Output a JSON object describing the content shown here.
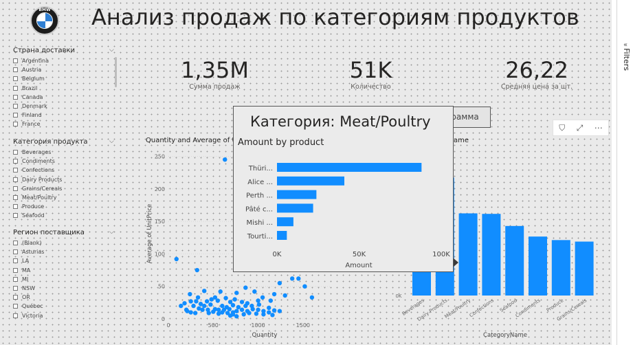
{
  "title": "Анализ продаж по категориям продуктов",
  "logo": {
    "text": "BMW"
  },
  "slicers": [
    {
      "title": "Страна доставки",
      "items": [
        "Argentina",
        "Austria",
        "Belgium",
        "Brazil",
        "Canada",
        "Denmark",
        "Finland",
        "France"
      ]
    },
    {
      "title": "Категория продукта",
      "items": [
        "Beverages",
        "Condiments",
        "Confections",
        "Dairy Products",
        "Grains/Cereals",
        "Meat/Poultry",
        "Produce",
        "Seafood"
      ]
    },
    {
      "title": "Регион поставщика",
      "items": [
        "(Blank)",
        "Asturias",
        "LA",
        "MA",
        "MI",
        "NSW",
        "OR",
        "Québec",
        "Victoria"
      ]
    }
  ],
  "kpis": [
    {
      "value": "1,35M",
      "label": "Сумма продаж"
    },
    {
      "value": "51K",
      "label": "Количество"
    },
    {
      "value": "26,22",
      "label": "Средняя цена за шт."
    }
  ],
  "bar_gram_button": "грамма",
  "visual_header_icons": [
    "filter-icon",
    "focus-mode-icon",
    "more-options-icon"
  ],
  "scatter_title": "Quantity and Average of U",
  "bar_title_partial": "ame",
  "filters_pane_label": "Filters",
  "tooltip": {
    "title": "Категория: Meat/Poultry",
    "subtitle": "Amount by product"
  },
  "chart_data": [
    {
      "type": "bar",
      "orientation": "horizontal",
      "title": "Amount by product",
      "categories": [
        "Thüri...",
        "Alice ...",
        "Perth ...",
        "Pâté c...",
        "Mishi ...",
        "Tourti..."
      ],
      "values": [
        88000,
        41000,
        24000,
        22000,
        10000,
        6000
      ],
      "xlabel": "Amount",
      "xlim": [
        0,
        100000
      ],
      "xticks": [
        "0K",
        "50K",
        "100K"
      ],
      "color": "#118dff"
    },
    {
      "type": "scatter",
      "title": "Quantity and Average of U",
      "xlabel": "Quantity",
      "ylabel": "Average of UnitPrice",
      "xlim": [
        0,
        1800
      ],
      "ylim": [
        0,
        260
      ],
      "xticks": [
        "0",
        "500",
        "1000",
        "1500"
      ],
      "yticks": [
        "0",
        "50",
        "100",
        "150",
        "200",
        "250"
      ],
      "color": "#118dff",
      "points": [
        [
          630,
          245
        ],
        [
          90,
          92
        ],
        [
          320,
          75
        ],
        [
          1380,
          62
        ],
        [
          1450,
          62
        ],
        [
          1240,
          55
        ],
        [
          860,
          48
        ],
        [
          1520,
          50
        ],
        [
          240,
          38
        ],
        [
          400,
          43
        ],
        [
          580,
          42
        ],
        [
          760,
          40
        ],
        [
          960,
          42
        ],
        [
          1180,
          38
        ],
        [
          1300,
          36
        ],
        [
          1600,
          33
        ],
        [
          330,
          33
        ],
        [
          520,
          33
        ],
        [
          640,
          32
        ],
        [
          1050,
          33
        ],
        [
          250,
          27
        ],
        [
          310,
          27
        ],
        [
          430,
          27
        ],
        [
          480,
          30
        ],
        [
          550,
          28
        ],
        [
          690,
          26
        ],
        [
          740,
          30
        ],
        [
          820,
          26
        ],
        [
          880,
          24
        ],
        [
          1000,
          28
        ],
        [
          1140,
          28
        ],
        [
          280,
          20
        ],
        [
          360,
          23
        ],
        [
          400,
          20
        ],
        [
          470,
          22
        ],
        [
          600,
          20
        ],
        [
          650,
          18
        ],
        [
          720,
          21
        ],
        [
          780,
          18
        ],
        [
          860,
          20
        ],
        [
          930,
          20
        ],
        [
          1010,
          22
        ],
        [
          1120,
          17
        ],
        [
          140,
          20
        ],
        [
          200,
          14
        ],
        [
          210,
          12
        ],
        [
          340,
          16
        ],
        [
          380,
          14
        ],
        [
          440,
          14
        ],
        [
          520,
          15
        ],
        [
          560,
          14
        ],
        [
          620,
          14
        ],
        [
          680,
          15
        ],
        [
          720,
          10
        ],
        [
          760,
          12
        ],
        [
          820,
          14
        ],
        [
          880,
          12
        ],
        [
          940,
          15
        ],
        [
          1000,
          14
        ],
        [
          1060,
          12
        ],
        [
          1120,
          10
        ],
        [
          1180,
          13
        ],
        [
          1240,
          12
        ],
        [
          250,
          10
        ],
        [
          300,
          9
        ],
        [
          450,
          9
        ],
        [
          500,
          11
        ],
        [
          560,
          8
        ],
        [
          600,
          10
        ],
        [
          660,
          9
        ],
        [
          720,
          7
        ],
        [
          840,
          7
        ],
        [
          900,
          9
        ],
        [
          980,
          8
        ],
        [
          1060,
          7
        ],
        [
          1160,
          6
        ],
        [
          690,
          5
        ],
        [
          760,
          4
        ],
        [
          180,
          24
        ]
      ]
    },
    {
      "type": "bar",
      "title": "ame",
      "xlabel": "CategoryName",
      "categories": [
        "Beverages",
        "Dairy Products",
        "Meat/Poultry",
        "Confections",
        "Seafood",
        "Condiments",
        "Produce",
        "Grains/Cereals"
      ],
      "values": [
        280000,
        234000,
        163000,
        162000,
        138000,
        117000,
        110000,
        107000
      ],
      "ylim": [
        0,
        300000
      ],
      "yticks": [
        "0K"
      ],
      "color": "#118dff"
    }
  ]
}
